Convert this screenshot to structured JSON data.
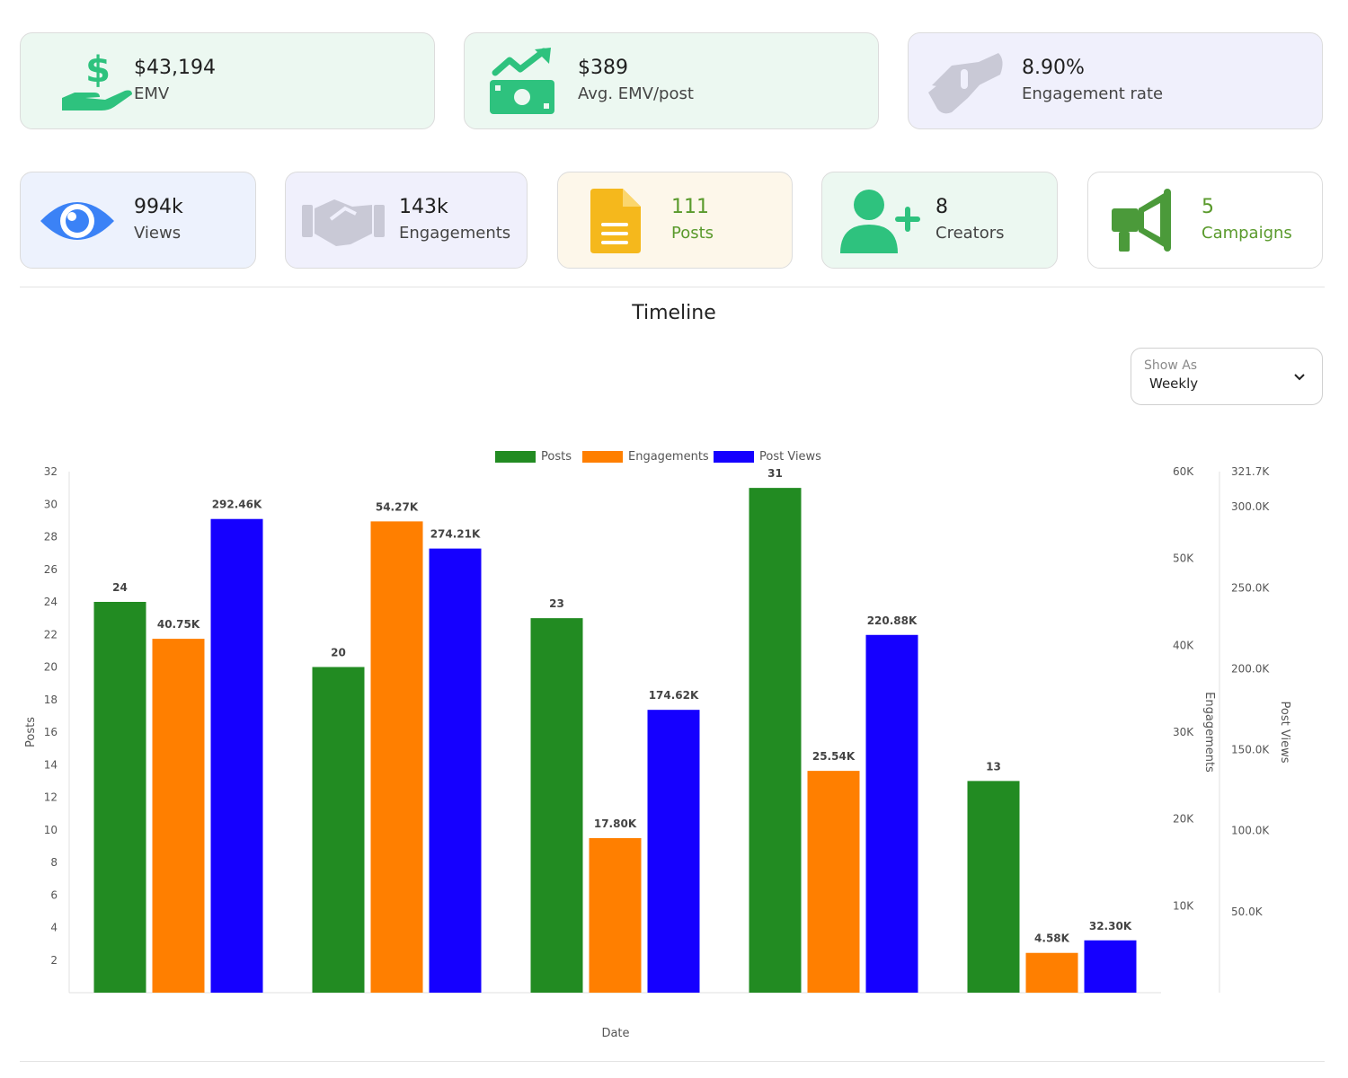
{
  "colors": {
    "green_card": "#ecf8f1",
    "violet_card": "#f0f0fc",
    "blue_card": "#edf2fd",
    "yellow_card": "#fdf7ea",
    "white_card": "#ffffff",
    "posts": "#228b22",
    "engagements": "#ff7f00",
    "post_views": "#1500ff"
  },
  "kpi_top": [
    {
      "value": "$43,194",
      "label": "EMV",
      "icon": "hand-dollar-icon"
    },
    {
      "value": "$389",
      "label": "Avg. EMV/post",
      "icon": "money-trend-icon"
    },
    {
      "value": "8.90%",
      "label": "Engagement rate",
      "icon": "handshake-icon"
    }
  ],
  "kpi_bottom": [
    {
      "value": "994k",
      "label": "Views",
      "icon": "eye-icon"
    },
    {
      "value": "143k",
      "label": "Engagements",
      "icon": "handshake-icon"
    },
    {
      "value": "111",
      "label": "Posts",
      "icon": "document-icon"
    },
    {
      "value": "8",
      "label": "Creators",
      "icon": "user-plus-icon"
    },
    {
      "value": "5",
      "label": "Campaigns",
      "icon": "megaphone-icon"
    }
  ],
  "timeline": {
    "title": "Timeline",
    "show_as_caption": "Show As",
    "show_as_value": "Weekly"
  },
  "chart_data": {
    "type": "bar",
    "categories": [
      "",
      "",
      "",
      "",
      ""
    ],
    "xlabel": "Date",
    "legend_position": "top-center",
    "series": [
      {
        "name": "Posts",
        "values": [
          24,
          20,
          23,
          31,
          13
        ],
        "labels": [
          "24",
          "20",
          "23",
          "31",
          "13"
        ],
        "axis": "Posts"
      },
      {
        "name": "Engagements",
        "values": [
          40750,
          54270,
          17800,
          25540,
          4580
        ],
        "labels": [
          "40.75K",
          "54.27K",
          "17.80K",
          "25.54K",
          "4.58K"
        ],
        "axis": "Engagements"
      },
      {
        "name": "Post Views",
        "values": [
          292460,
          274210,
          174620,
          220880,
          32300
        ],
        "labels": [
          "292.46K",
          "274.21K",
          "174.62K",
          "220.88K",
          "32.30K"
        ],
        "axis": "Post Views"
      }
    ],
    "axes": [
      {
        "name": "Posts",
        "ylim": [
          0,
          32
        ],
        "ticks": [
          "2",
          "4",
          "6",
          "8",
          "10",
          "12",
          "14",
          "16",
          "18",
          "20",
          "22",
          "24",
          "26",
          "28",
          "30",
          "32"
        ],
        "tick_values": [
          2,
          4,
          6,
          8,
          10,
          12,
          14,
          16,
          18,
          20,
          22,
          24,
          26,
          28,
          30,
          32
        ],
        "position": "left"
      },
      {
        "name": "Engagements",
        "ylim": [
          0,
          60000
        ],
        "ticks": [
          "10K",
          "20K",
          "30K",
          "40K",
          "50K",
          "60K"
        ],
        "tick_values": [
          10000,
          20000,
          30000,
          40000,
          50000,
          60000
        ],
        "position": "right"
      },
      {
        "name": "Post Views",
        "ylim": [
          0,
          321700
        ],
        "ticks": [
          "50.0K",
          "100.0K",
          "150.0K",
          "200.0K",
          "250.0K",
          "300.0K",
          "321.7K"
        ],
        "tick_values": [
          50000,
          100000,
          150000,
          200000,
          250000,
          300000,
          321700
        ],
        "position": "right"
      }
    ]
  }
}
